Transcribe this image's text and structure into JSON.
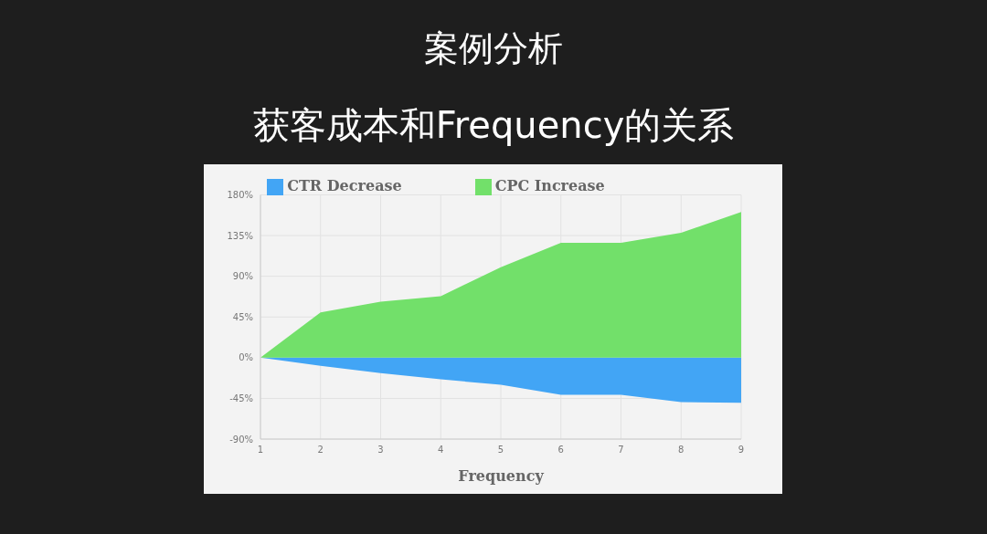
{
  "chart_data": {
    "type": "area",
    "title": "案例分析",
    "subtitle": "获客成本和Frequency的关系",
    "xlabel": "Frequency",
    "x": [
      1,
      2,
      3,
      4,
      5,
      6,
      7,
      8,
      9
    ],
    "series": [
      {
        "name": "CTR Decrease",
        "color": "#42a5f5",
        "values": [
          0,
          -9,
          -17,
          -24,
          -30,
          -41,
          -41,
          -49,
          -50
        ]
      },
      {
        "name": "CPC Increase",
        "color": "#72e06a",
        "values": [
          0,
          50,
          62,
          68,
          100,
          127,
          127,
          138,
          161
        ]
      }
    ],
    "xlim": [
      1,
      9
    ],
    "xticks": [
      1,
      2,
      3,
      4,
      5,
      6,
      7,
      8,
      9
    ],
    "ylim": [
      -90,
      180
    ],
    "yticks": [
      {
        "value": -90,
        "label": "-90%"
      },
      {
        "value": -45,
        "label": "-45%"
      },
      {
        "value": 0,
        "label": "0%"
      },
      {
        "value": 45,
        "label": "45%"
      },
      {
        "value": 90,
        "label": "90%"
      },
      {
        "value": 135,
        "label": "135%"
      },
      {
        "value": 180,
        "label": "180%"
      }
    ],
    "grid": true,
    "legend": "top"
  }
}
